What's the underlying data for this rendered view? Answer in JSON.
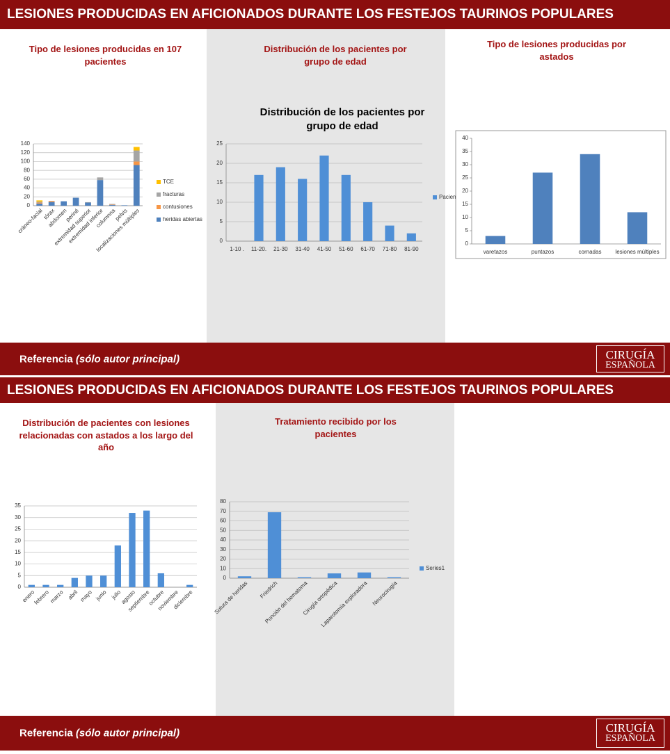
{
  "panels": [
    {
      "header": "LESIONES PRODUCIDAS EN AFICIONADOS DURANTE LOS FESTEJOS TAURINOS POPULARES",
      "footer": {
        "label": "Referencia",
        "note": "(sólo autor principal)"
      },
      "logo": {
        "line1": "CIRUGÍA",
        "line2": "ESPAÑOLA"
      }
    },
    {
      "header": "LESIONES PRODUCIDAS EN AFICIONADOS DURANTE LOS FESTEJOS TAURINOS POPULARES",
      "footer": {
        "label": "Referencia",
        "note": "(sólo autor principal)"
      },
      "logo": {
        "line1": "CIRUGÍA",
        "line2": "ESPAÑOLA"
      }
    }
  ],
  "chart_data": [
    {
      "type": "bar",
      "stacked": true,
      "title": "Tipo de lesiones producidas en 107 pacientes",
      "categories": [
        "cráneo-facial",
        "tórax",
        "abdomen",
        "periné",
        "extremidad superior",
        "extremidad inferior",
        "columnna",
        "pelvis",
        "localizaciones múltiples"
      ],
      "series": [
        {
          "name": "heridas abiertas",
          "color": "#4f81bd",
          "values": [
            5,
            8,
            10,
            18,
            7,
            58,
            2,
            1,
            92
          ]
        },
        {
          "name": "contusiones",
          "color": "#f79646",
          "values": [
            2,
            2,
            0,
            0,
            0,
            0,
            1,
            0,
            8
          ]
        },
        {
          "name": "fracturas",
          "color": "#a5a5a5",
          "values": [
            2,
            1,
            0,
            0,
            1,
            6,
            1,
            0,
            25
          ]
        },
        {
          "name": "TCE",
          "color": "#ffc000",
          "values": [
            3,
            0,
            0,
            0,
            0,
            0,
            0,
            0,
            8
          ]
        }
      ],
      "ylim": [
        0,
        140
      ],
      "yticks": [
        0,
        20,
        40,
        60,
        80,
        100,
        120,
        140
      ],
      "grid": true
    },
    {
      "type": "bar",
      "title": "Distribución de los pacientes por grupo de edad",
      "inner_title": "Distribución de los pacientes por grupo de edad",
      "categories": [
        "1-10 .",
        "11-20.",
        "21-30",
        "31-40",
        "41-50",
        "51-60",
        "61-70",
        "71-80",
        "81-90"
      ],
      "series": [
        {
          "name": "Pacien",
          "color": "#4f8fd6",
          "values": [
            0,
            17,
            19,
            16,
            22,
            17,
            10,
            4,
            2
          ]
        }
      ],
      "ylim": [
        0,
        25
      ],
      "yticks": [
        0,
        5,
        10,
        15,
        20,
        25
      ],
      "grid": true
    },
    {
      "type": "bar",
      "title": "Tipo de lesiones producidas por astados",
      "categories": [
        "varetazos",
        "puntazos",
        "cornadas",
        "lesiones múltiples"
      ],
      "values": [
        3,
        27,
        34,
        12
      ],
      "color": "#4f81bd",
      "ylim": [
        0,
        40
      ],
      "yticks": [
        0,
        5,
        10,
        15,
        20,
        25,
        30,
        35,
        40
      ],
      "grid": false
    },
    {
      "type": "bar",
      "title": "Distribución de pacientes  con lesiones relacionadas con astados a los largo del año",
      "categories": [
        "enero",
        "febrero",
        "marzo",
        "abril",
        "mayo",
        "junio",
        "julio",
        "agosto",
        "septiembre",
        "octubre",
        "noviembre",
        "diciembre"
      ],
      "values": [
        1,
        1,
        1,
        4,
        5,
        5,
        18,
        32,
        33,
        6,
        0,
        1
      ],
      "color": "#4f8fd6",
      "ylim": [
        0,
        35
      ],
      "yticks": [
        0,
        5,
        10,
        15,
        20,
        25,
        30,
        35
      ],
      "grid": true
    },
    {
      "type": "bar",
      "title": "Tratamiento recibido por los pacientes",
      "categories": [
        "Sutura de heridas",
        "Friedrich",
        "Punción del hematoma",
        "Cirugía ortopédica",
        "Laparotomía exploradora",
        "Neurocirugía"
      ],
      "series": [
        {
          "name": "Series1",
          "color": "#4f8fd6",
          "values": [
            2,
            69,
            1,
            5,
            6,
            1
          ]
        }
      ],
      "ylim": [
        0,
        80
      ],
      "yticks": [
        0,
        10,
        20,
        30,
        40,
        50,
        60,
        70,
        80
      ],
      "grid": true
    }
  ]
}
